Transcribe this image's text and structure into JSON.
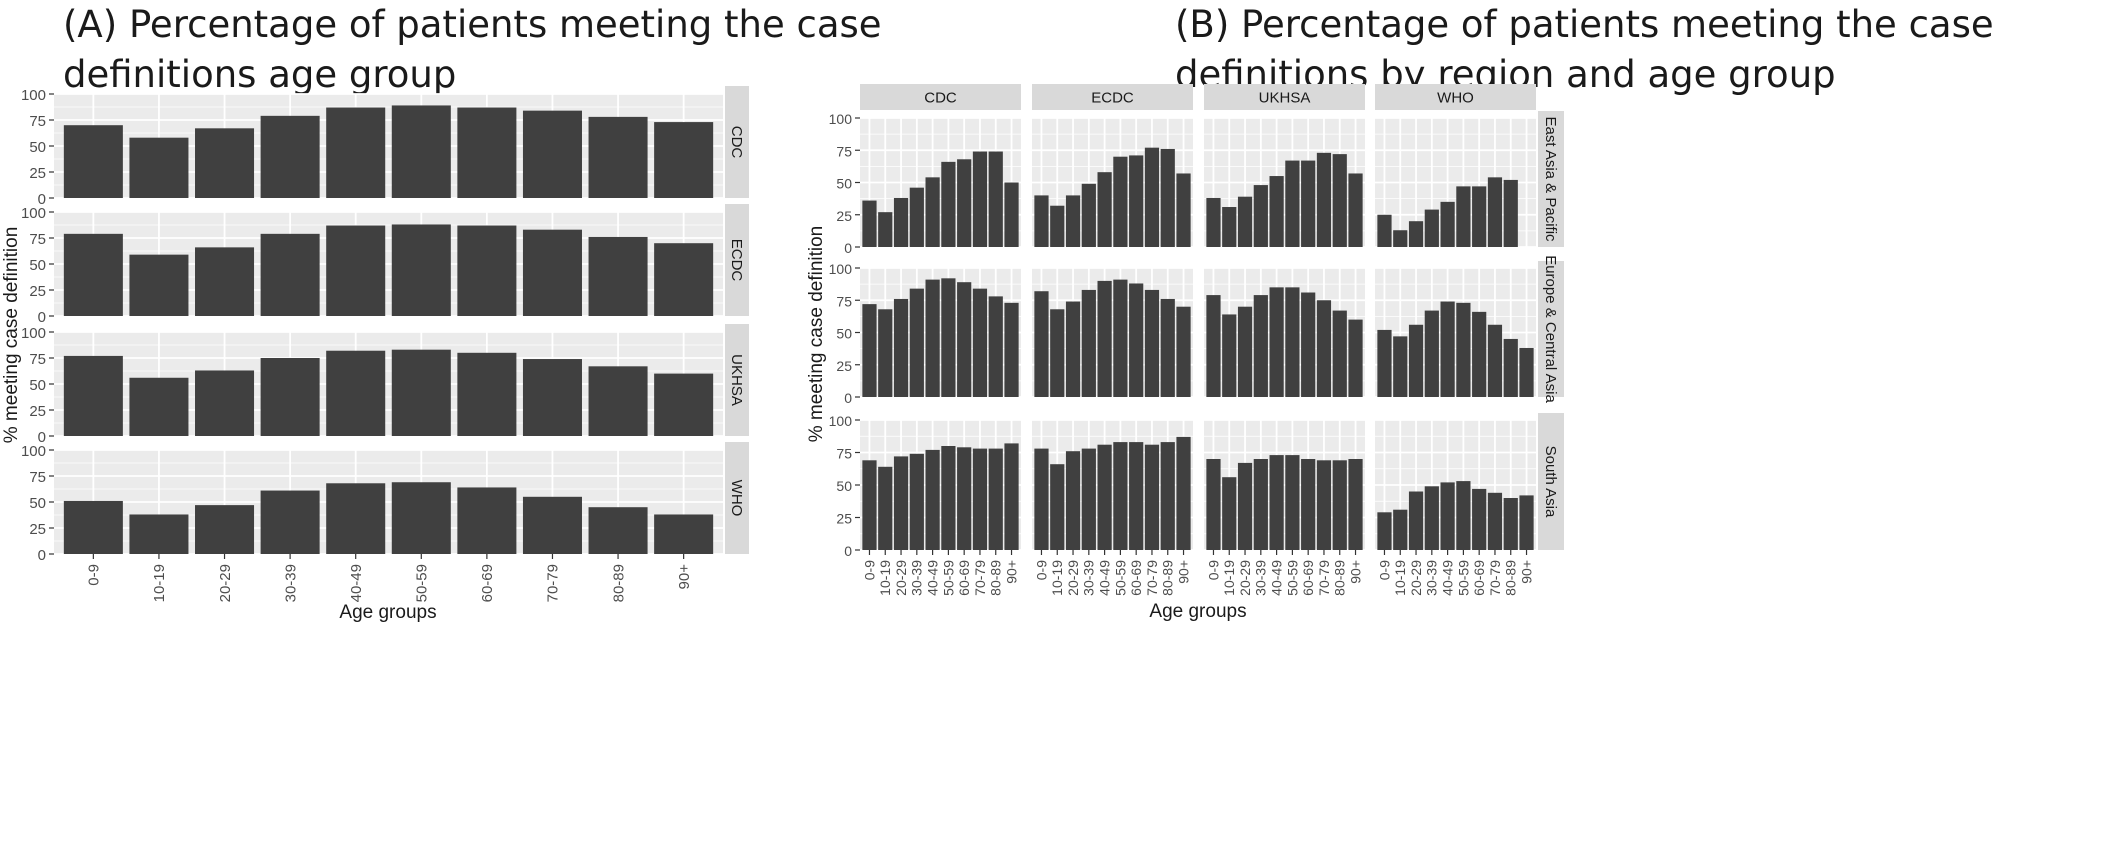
{
  "chart_data": [
    {
      "type": "bar",
      "title": "(A) Percentage of patients meeting the case definitions age group",
      "xlabel": "Age groups",
      "ylabel": "% meeting case definition",
      "ylim": [
        0,
        100
      ],
      "yticks": [
        "0",
        "25",
        "50",
        "75",
        "100"
      ],
      "grid": true,
      "categories": [
        "0-9",
        "10-19",
        "20-29",
        "30-39",
        "40-49",
        "50-59",
        "60-69",
        "70-79",
        "80-89",
        "90+"
      ],
      "series": [
        {
          "name": "CDC",
          "values": [
            70,
            58,
            67,
            79,
            87,
            89,
            87,
            84,
            78,
            73
          ]
        },
        {
          "name": "ECDC",
          "values": [
            79,
            59,
            66,
            79,
            87,
            88,
            87,
            83,
            76,
            70
          ]
        },
        {
          "name": "UKHSA",
          "values": [
            77,
            56,
            63,
            75,
            82,
            83,
            80,
            74,
            67,
            60
          ]
        },
        {
          "name": "WHO",
          "values": [
            51,
            38,
            47,
            61,
            68,
            69,
            64,
            55,
            45,
            38
          ]
        }
      ]
    },
    {
      "type": "bar",
      "title": "(B) Percentage of patients meeting the case definitions by region and age group",
      "xlabel": "Age groups",
      "ylabel": "% meeting case definition",
      "ylim": [
        0,
        100
      ],
      "yticks": [
        "0",
        "25",
        "50",
        "75",
        "100"
      ],
      "grid": true,
      "categories": [
        "0-9",
        "10-19",
        "20-29",
        "30-39",
        "40-49",
        "50-59",
        "60-69",
        "70-79",
        "80-89",
        "90+"
      ],
      "columns": [
        "CDC",
        "ECDC",
        "UKHSA",
        "WHO"
      ],
      "rows": [
        "East Asia & Pacific",
        "Europe & Central Asia",
        "South Asia"
      ],
      "panels": [
        {
          "row": "East Asia & Pacific",
          "column": "CDC",
          "values": [
            36,
            27,
            38,
            46,
            54,
            66,
            68,
            74,
            74,
            50
          ]
        },
        {
          "row": "East Asia & Pacific",
          "column": "ECDC",
          "values": [
            40,
            32,
            40,
            49,
            58,
            70,
            71,
            77,
            76,
            57
          ]
        },
        {
          "row": "East Asia & Pacific",
          "column": "UKHSA",
          "values": [
            38,
            31,
            39,
            48,
            55,
            67,
            67,
            73,
            72,
            57
          ]
        },
        {
          "row": "East Asia & Pacific",
          "column": "WHO",
          "values": [
            25,
            13,
            20,
            29,
            35,
            47,
            47,
            54,
            52,
            0
          ]
        },
        {
          "row": "Europe & Central Asia",
          "column": "CDC",
          "values": [
            72,
            68,
            76,
            84,
            91,
            92,
            89,
            84,
            78,
            73
          ]
        },
        {
          "row": "Europe & Central Asia",
          "column": "ECDC",
          "values": [
            82,
            68,
            74,
            83,
            90,
            91,
            88,
            83,
            76,
            70
          ]
        },
        {
          "row": "Europe & Central Asia",
          "column": "UKHSA",
          "values": [
            79,
            64,
            70,
            79,
            85,
            85,
            81,
            75,
            67,
            60
          ]
        },
        {
          "row": "Europe & Central Asia",
          "column": "WHO",
          "values": [
            52,
            47,
            56,
            67,
            74,
            73,
            66,
            56,
            45,
            38
          ]
        },
        {
          "row": "South Asia",
          "column": "CDC",
          "values": [
            69,
            64,
            72,
            74,
            77,
            80,
            79,
            78,
            78,
            82
          ]
        },
        {
          "row": "South Asia",
          "column": "ECDC",
          "values": [
            78,
            66,
            76,
            78,
            81,
            83,
            83,
            81,
            83,
            87
          ]
        },
        {
          "row": "South Asia",
          "column": "UKHSA",
          "values": [
            70,
            56,
            67,
            70,
            73,
            73,
            70,
            69,
            69,
            70
          ]
        },
        {
          "row": "South Asia",
          "column": "WHO",
          "values": [
            29,
            31,
            45,
            49,
            52,
            53,
            47,
            44,
            40,
            42
          ]
        }
      ]
    }
  ],
  "colors": {
    "bar": "#404040",
    "panel_bg": "#ebebeb",
    "grid": "#ffffff",
    "strip_bg": "#d9d9d9",
    "text": "#1a1a1a",
    "tick_text": "#4d4d4d"
  }
}
